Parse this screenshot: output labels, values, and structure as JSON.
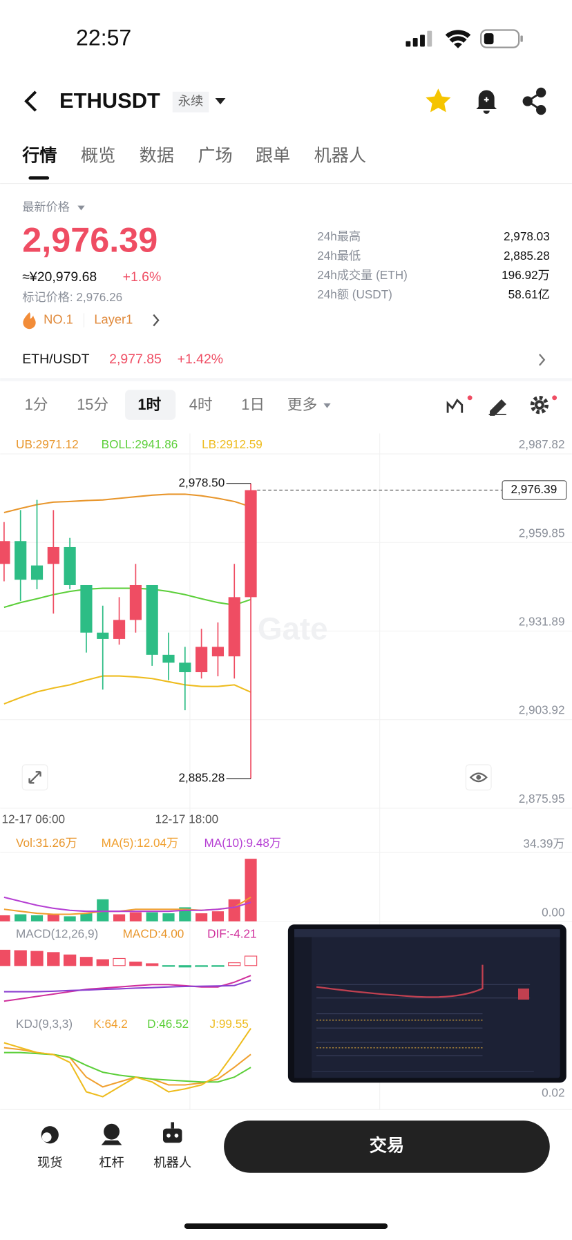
{
  "status_bar": {
    "time": "22:57"
  },
  "header": {
    "symbol": "ETHUSDT",
    "contract_tag": "永续"
  },
  "tabs": [
    "行情",
    "概览",
    "数据",
    "广场",
    "跟单",
    "机器人"
  ],
  "price": {
    "label": "最新价格",
    "last": "2,976.39",
    "cny": "≈¥20,979.68",
    "change": "+1.6%",
    "mark": "标记价格: 2,976.26",
    "rank": "NO.1",
    "sector": "Layer1"
  },
  "stats": [
    {
      "label": "24h最高",
      "value": "2,978.03"
    },
    {
      "label": "24h最低",
      "value": "2,885.28"
    },
    {
      "label": "24h成交量 (ETH)",
      "value": "196.92万"
    },
    {
      "label": "24h额 (USDT)",
      "value": "58.61亿"
    }
  ],
  "spot_pair": {
    "name": "ETH/USDT",
    "price": "2,977.85",
    "change": "+1.42%"
  },
  "intervals": [
    "1分",
    "15分",
    "1时",
    "4时",
    "1日",
    "更多"
  ],
  "chart_data": [
    {
      "type": "candlestick",
      "up_color": "#ef4d63",
      "down_color": "#2dbd85",
      "open": [
        2953.1,
        2960.3,
        2952.6,
        2953.1,
        2958.4,
        2946.4,
        2931.4,
        2929.4,
        2935.4,
        2946.4,
        2924.4,
        2921.9,
        2918.9,
        2923.9,
        2923.9,
        2942.6
      ],
      "high": [
        2966.3,
        2970.1,
        2973.3,
        2970.1,
        2961.3,
        2946.4,
        2939.9,
        2942.6,
        2953.1,
        2946.4,
        2931.4,
        2926.9,
        2932.6,
        2934.6,
        2953.1,
        2978.5
      ],
      "low": [
        2947.6,
        2941.4,
        2945.1,
        2937.4,
        2945.1,
        2925.1,
        2913.4,
        2927.6,
        2931.4,
        2920.9,
        2916.4,
        2906.9,
        2916.9,
        2917.6,
        2916.9,
        2885.28
      ],
      "close": [
        2960.3,
        2948.1,
        2948.1,
        2958.4,
        2946.4,
        2931.4,
        2929.4,
        2935.4,
        2946.4,
        2924.4,
        2921.9,
        2918.9,
        2926.9,
        2926.9,
        2942.6,
        2976.39
      ],
      "series": [
        {
          "name": "UB:2971.12",
          "color": "#e8962c",
          "values": [
            2969.3,
            2970.6,
            2971.8,
            2972.6,
            2972.8,
            2973.1,
            2973.3,
            2973.8,
            2974.3,
            2974.8,
            2975.1,
            2975.1,
            2974.6,
            2973.8,
            2972.8,
            2971.12
          ]
        },
        {
          "name": "BOLL:2941.86",
          "color": "#5ccf3a",
          "values": [
            2939.4,
            2940.9,
            2942.1,
            2943.4,
            2944.4,
            2945.1,
            2945.4,
            2945.4,
            2945.4,
            2945.1,
            2944.4,
            2943.4,
            2942.1,
            2940.9,
            2940.1,
            2941.86
          ]
        },
        {
          "name": "LB:2912.59",
          "color": "#eebc1e",
          "values": [
            2908.9,
            2910.9,
            2912.7,
            2913.9,
            2914.9,
            2916.4,
            2917.7,
            2917.7,
            2917.4,
            2916.9,
            2915.9,
            2914.9,
            2914.4,
            2914.4,
            2914.9,
            2912.59
          ]
        }
      ],
      "ylim": [
        2875.95,
        2987.82
      ],
      "yticks": [
        {
          "value": 2987.82,
          "label": "2,987.82"
        },
        {
          "value": 2959.85,
          "label": "2,959.85"
        },
        {
          "value": 2931.89,
          "label": "2,931.89"
        },
        {
          "value": 2903.92,
          "label": "2,903.92"
        },
        {
          "value": 2875.95,
          "label": "2,875.95"
        }
      ],
      "x_labels": [
        "12-17 06:00",
        "12-17 18:00"
      ],
      "last_price": {
        "value": 2976.39,
        "label": "2,976.39"
      },
      "high_label": {
        "value": 2978.5,
        "label": "2,978.50"
      },
      "low_label": {
        "value": 2885.28,
        "label": "2,885.28"
      }
    },
    {
      "type": "volume",
      "series": [
        {
          "name": "Vol:31.26万",
          "color": "#e8962c",
          "values": [
            3,
            3.5,
            3,
            3.5,
            2.5,
            4,
            11,
            3.5,
            4.5,
            4.5,
            4,
            7,
            4,
            5,
            11,
            31.26
          ]
        },
        {
          "name": "MA(5):12.04万",
          "color": "#f0a030",
          "values": [
            6,
            5,
            4,
            3.5,
            3.5,
            4,
            5,
            5,
            6,
            6,
            6,
            6,
            5.5,
            6,
            7,
            12.04
          ]
        },
        {
          "name": "MA(10):9.48万",
          "color": "#b53fd3",
          "values": [
            12,
            10,
            8,
            6.5,
            5.5,
            5,
            5,
            5,
            5,
            5,
            5,
            5.5,
            5.5,
            6,
            7,
            9.48
          ]
        }
      ],
      "ylim": [
        0,
        34.39
      ],
      "yticks": [
        {
          "value": 34.39,
          "label": "34.39万"
        },
        {
          "value": 0,
          "label": "0.00"
        }
      ]
    },
    {
      "type": "macd",
      "title": "MACD(12,26,9)",
      "series": [
        {
          "name": "MACD:4.00",
          "color": "#e8962c",
          "values": [
            6.5,
            6.3,
            6,
            5.5,
            4.5,
            3.5,
            2.5,
            3,
            1.5,
            0.8,
            -0.2,
            -0.6,
            -0.5,
            -0.4,
            1.2,
            4.0
          ]
        },
        {
          "name": "DIF:-4.21",
          "color": "#d0309c",
          "values": [
            -15,
            -14,
            -13,
            -12,
            -11,
            -10,
            -9.5,
            -9,
            -8.5,
            -8,
            -8,
            -8.5,
            -9,
            -9,
            -7,
            -4.21
          ]
        },
        {
          "color": "#8a3fd0",
          "values": [
            -11,
            -11,
            -11,
            -10.8,
            -10.5,
            -10.3,
            -10,
            -9.8,
            -9.5,
            -9.3,
            -9,
            -8.8,
            -8.7,
            -8.6,
            -8.4,
            -6.21
          ]
        }
      ],
      "ylim": [
        -19,
        9
      ]
    },
    {
      "type": "kdj",
      "title": "KDJ(9,3,3)",
      "series": [
        {
          "name": "K:64.2",
          "color": "#f0a030",
          "values": [
            73.3,
            70.7,
            66.7,
            64,
            60,
            33.3,
            20,
            26.7,
            33.3,
            30.7,
            22.7,
            22.7,
            25.3,
            30.7,
            46.7,
            64.2
          ]
        },
        {
          "name": "D:46.52",
          "color": "#5ccf3a",
          "values": [
            66.7,
            66.7,
            65.3,
            64,
            60,
            49.3,
            40,
            36,
            33.3,
            30.7,
            29.3,
            28,
            26.7,
            26.7,
            33.3,
            46.52
          ]
        },
        {
          "name": "J:99.55",
          "color": "#eebc1e",
          "values": [
            80,
            73.3,
            66.7,
            64,
            53.3,
            13.3,
            6.7,
            20,
            33.3,
            26.7,
            13.3,
            17.3,
            22.7,
            36,
            66.7,
            99.55
          ]
        }
      ],
      "ylim": [
        0.02,
        100
      ],
      "yticks": [
        0.02
      ]
    }
  ],
  "bottom_bar": {
    "items": [
      "现货",
      "杠杆",
      "机器人"
    ],
    "button": "交易"
  }
}
